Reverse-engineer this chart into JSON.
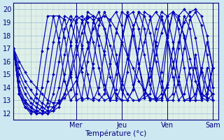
{
  "title": "Température (°c)",
  "x_ticks_positions": [
    18,
    66,
    114,
    162,
    210
  ],
  "x_tick_labels": [
    "",
    "Mer",
    "Jeu",
    "Ven",
    "Sam"
  ],
  "ylim": [
    11.5,
    20.5
  ],
  "xlim": [
    0,
    216
  ],
  "yticks": [
    12,
    13,
    14,
    15,
    16,
    17,
    18,
    19,
    20
  ],
  "line_color": "#0000bb",
  "bg_color": "#cde8f0",
  "plot_bg": "#dff0e8",
  "grid_major_color": "#99bbd0",
  "grid_minor_color": "#bbcce0",
  "marker": "D",
  "marker_size": 2.0,
  "line_width": 0.85,
  "start_x": 0,
  "start_y": 17.0,
  "series": [
    {
      "xs": [
        0,
        6,
        12,
        18,
        24,
        30,
        36,
        42,
        48,
        54,
        60,
        66,
        72,
        78,
        84,
        90,
        96,
        102,
        108,
        114,
        120,
        126,
        132,
        138,
        144,
        150,
        156,
        162,
        168,
        174,
        180,
        186,
        192,
        198,
        204,
        210
      ],
      "ys": [
        17.0,
        16.0,
        15.2,
        14.5,
        14.0,
        13.5,
        13.0,
        12.8,
        12.8,
        13.2,
        13.8,
        14.5,
        15.5,
        17.0,
        18.5,
        19.3,
        19.5,
        19.2,
        18.5,
        17.5,
        16.5,
        15.5,
        14.5,
        13.8,
        13.2,
        13.0,
        13.2,
        14.0,
        15.5,
        17.5,
        19.0,
        19.8,
        20.0,
        19.5,
        18.0,
        15.5
      ]
    },
    {
      "xs": [
        0,
        6,
        12,
        18,
        24,
        30,
        36,
        42,
        48,
        54,
        60,
        66,
        72,
        78,
        84,
        90,
        96,
        102,
        108,
        114,
        120,
        126,
        132,
        138,
        144,
        150,
        156,
        162,
        168,
        174,
        180,
        186,
        192,
        198,
        204,
        210
      ],
      "ys": [
        17.0,
        15.5,
        14.5,
        13.8,
        13.2,
        12.8,
        12.5,
        12.5,
        12.8,
        13.5,
        14.8,
        16.5,
        18.2,
        19.3,
        19.5,
        19.2,
        18.5,
        17.2,
        15.8,
        14.5,
        13.5,
        13.0,
        13.0,
        13.5,
        14.8,
        16.5,
        18.2,
        19.5,
        19.8,
        19.2,
        18.0,
        16.2,
        14.5,
        13.2,
        13.0,
        13.5
      ]
    },
    {
      "xs": [
        0,
        6,
        12,
        18,
        24,
        30,
        36,
        42,
        48,
        54,
        60,
        66,
        72,
        78,
        84,
        90,
        96,
        102,
        108,
        114,
        120,
        126,
        132,
        138,
        144,
        150,
        156,
        162,
        168,
        174,
        180,
        186,
        192,
        198,
        204,
        210
      ],
      "ys": [
        17.0,
        15.0,
        14.0,
        13.2,
        12.8,
        12.5,
        12.2,
        12.2,
        12.5,
        13.5,
        15.2,
        17.2,
        19.0,
        19.5,
        19.2,
        18.0,
        16.5,
        14.8,
        13.5,
        13.0,
        13.0,
        13.8,
        15.5,
        17.5,
        19.2,
        19.8,
        19.2,
        17.8,
        16.0,
        14.2,
        13.0,
        13.0,
        13.5,
        15.2,
        17.5,
        15.5
      ]
    },
    {
      "xs": [
        0,
        6,
        12,
        18,
        24,
        30,
        36,
        42,
        48,
        54,
        60,
        66,
        72,
        78,
        84,
        90,
        96,
        102,
        108,
        114,
        120,
        126,
        132,
        138,
        144,
        150,
        156,
        162,
        168,
        174,
        180,
        186,
        192,
        198,
        204,
        210
      ],
      "ys": [
        17.0,
        14.5,
        13.5,
        12.8,
        12.5,
        12.2,
        12.0,
        12.2,
        13.0,
        15.0,
        17.2,
        19.2,
        19.5,
        19.0,
        17.5,
        15.5,
        13.8,
        13.0,
        13.0,
        14.2,
        16.2,
        18.5,
        19.8,
        19.5,
        18.2,
        16.0,
        14.0,
        13.0,
        13.0,
        14.5,
        17.0,
        19.2,
        19.8,
        18.8,
        16.5,
        14.0
      ]
    },
    {
      "xs": [
        0,
        6,
        12,
        18,
        24,
        30,
        36,
        42,
        48,
        54,
        60,
        66,
        72,
        78,
        84,
        90,
        96,
        102,
        108,
        114,
        120,
        126,
        132,
        138,
        144,
        150,
        156,
        162,
        168,
        174,
        180,
        186,
        192,
        198,
        204,
        210
      ],
      "ys": [
        17.0,
        14.0,
        13.0,
        12.5,
        12.2,
        12.0,
        12.0,
        12.5,
        14.0,
        16.5,
        18.8,
        19.5,
        19.2,
        17.5,
        15.5,
        13.5,
        13.0,
        13.2,
        15.0,
        17.5,
        19.5,
        19.8,
        18.5,
        16.5,
        14.2,
        13.0,
        13.0,
        14.2,
        17.0,
        19.5,
        20.0,
        19.5,
        17.8,
        15.2,
        13.2,
        13.0
      ]
    },
    {
      "xs": [
        0,
        6,
        12,
        18,
        24,
        30,
        36,
        42,
        48,
        54,
        60,
        66,
        72,
        78,
        84,
        90,
        96,
        102,
        108,
        114,
        120,
        126,
        132,
        138,
        144,
        150,
        156,
        162,
        168,
        174,
        180,
        186,
        192,
        198,
        204,
        210
      ],
      "ys": [
        17.0,
        13.8,
        12.8,
        12.5,
        12.0,
        12.0,
        12.2,
        13.5,
        16.0,
        18.5,
        19.5,
        19.0,
        17.2,
        15.0,
        13.2,
        13.0,
        13.5,
        15.8,
        18.2,
        19.8,
        19.5,
        18.0,
        15.8,
        13.8,
        13.0,
        13.2,
        15.2,
        18.0,
        19.8,
        19.5,
        17.8,
        15.0,
        13.0,
        13.0,
        15.5,
        13.0
      ]
    },
    {
      "xs": [
        0,
        6,
        12,
        18,
        24,
        30,
        36,
        42,
        48,
        54,
        60,
        66,
        72,
        78,
        84,
        90,
        96,
        102,
        108,
        114,
        120,
        126,
        132,
        138,
        144,
        150,
        156,
        162,
        168,
        174,
        180,
        186,
        192,
        198,
        204,
        210
      ],
      "ys": [
        17.0,
        13.5,
        12.8,
        12.2,
        12.0,
        12.0,
        12.8,
        15.0,
        17.8,
        19.5,
        19.2,
        17.5,
        15.2,
        13.2,
        13.0,
        14.0,
        16.8,
        19.2,
        19.8,
        18.8,
        16.5,
        14.2,
        13.0,
        13.2,
        15.5,
        18.5,
        19.8,
        19.5,
        17.5,
        14.8,
        13.0,
        13.2,
        16.5,
        13.5,
        13.2,
        15.5
      ]
    },
    {
      "xs": [
        0,
        6,
        12,
        18,
        24,
        30,
        36,
        42,
        48,
        54,
        60,
        66,
        72,
        78,
        84,
        90,
        96,
        102,
        108,
        114,
        120,
        126,
        132,
        138,
        144,
        150,
        156,
        162,
        168,
        174,
        180,
        186,
        192,
        198,
        204,
        210
      ],
      "ys": [
        17.0,
        13.5,
        12.5,
        12.2,
        12.0,
        12.5,
        14.5,
        17.5,
        19.5,
        19.2,
        17.5,
        14.8,
        13.0,
        13.2,
        15.8,
        18.8,
        19.8,
        18.8,
        16.5,
        13.8,
        13.0,
        13.8,
        17.0,
        19.8,
        19.5,
        17.2,
        14.5,
        13.0,
        13.5,
        17.0,
        19.5,
        18.5,
        15.5,
        13.2,
        13.5,
        15.5
      ]
    },
    {
      "xs": [
        0,
        6,
        12,
        18,
        24,
        30,
        36,
        42,
        48,
        54,
        60,
        66,
        72,
        78,
        84,
        90,
        96,
        102,
        108,
        114,
        120,
        126,
        132,
        138,
        144,
        150,
        156,
        162,
        168,
        174,
        180,
        186,
        192,
        198,
        204,
        210
      ],
      "ys": [
        17.0,
        13.5,
        12.5,
        12.0,
        12.2,
        14.0,
        17.0,
        19.5,
        19.5,
        17.8,
        15.0,
        13.0,
        13.2,
        16.0,
        19.0,
        19.8,
        18.5,
        15.8,
        13.2,
        13.0,
        15.2,
        18.5,
        19.8,
        18.5,
        15.5,
        13.0,
        13.5,
        17.5,
        19.8,
        18.5,
        15.5,
        13.0,
        13.0,
        15.5,
        14.0,
        13.5
      ]
    },
    {
      "xs": [
        0,
        6,
        12,
        18,
        24,
        30,
        36,
        42,
        48,
        54,
        60,
        66,
        72,
        78,
        84,
        90,
        96,
        102,
        108,
        114,
        120,
        126,
        132,
        138,
        144,
        150,
        156,
        162,
        168,
        174,
        180,
        186,
        192,
        198,
        204,
        210
      ],
      "ys": [
        17.0,
        13.5,
        12.5,
        12.2,
        13.5,
        16.8,
        19.5,
        19.5,
        17.5,
        14.5,
        13.0,
        13.5,
        17.0,
        19.8,
        19.5,
        17.2,
        14.2,
        13.0,
        13.8,
        17.5,
        19.8,
        18.8,
        15.8,
        13.2,
        13.5,
        17.5,
        19.5,
        18.0,
        14.8,
        13.0,
        13.5,
        15.5,
        15.5,
        13.5,
        13.2,
        15.5
      ]
    }
  ]
}
